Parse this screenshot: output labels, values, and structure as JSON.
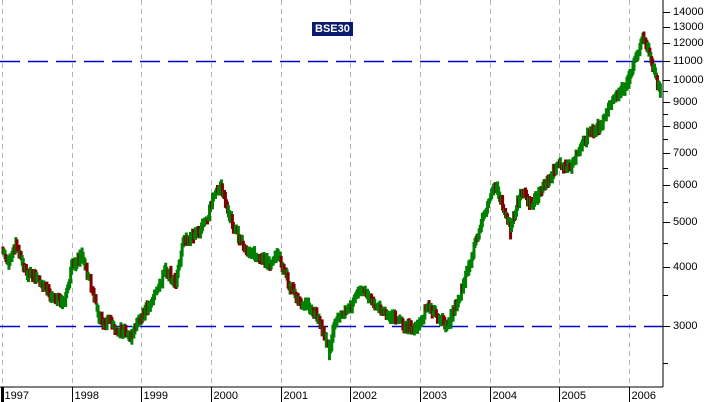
{
  "chart_data": {
    "type": "line",
    "title": "BSE30",
    "xlabel": "",
    "ylabel": "",
    "y_scale": "log",
    "ylim": [
      2400,
      14800
    ],
    "grid": {
      "vertical_year_lines": true,
      "style": "dashed gray"
    },
    "reference_lines": [
      {
        "value": 11000,
        "style": "dashed",
        "color": "#0000cc"
      },
      {
        "value": 3000,
        "style": "dashed",
        "color": "#0000cc"
      }
    ],
    "x_tick_labels": [
      "1997",
      "1998",
      "1999",
      "2000",
      "2001",
      "2002",
      "2003",
      "2004",
      "2005",
      "2006"
    ],
    "y_tick_labels": [
      "14000",
      "13000",
      "12000",
      "11000",
      "10000",
      "9000",
      "8000",
      "7000",
      "6000",
      "5000",
      "4000",
      "3000"
    ],
    "series": [
      {
        "name": "BSE30",
        "up_color": "#008000",
        "down_color": "#800000",
        "x": [
          "1997.0",
          "1997.1",
          "1997.2",
          "1997.35",
          "1997.5",
          "1997.6",
          "1997.75",
          "1997.9",
          "1998.0",
          "1998.15",
          "1998.25",
          "1998.35",
          "1998.45",
          "1998.55",
          "1998.65",
          "1998.75",
          "1998.85",
          "1998.95",
          "1999.1",
          "1999.25",
          "1999.35",
          "1999.5",
          "1999.6",
          "1999.75",
          "1999.85",
          "1999.95",
          "2000.05",
          "2000.15",
          "2000.25",
          "2000.35",
          "2000.45",
          "2000.55",
          "2000.7",
          "2000.85",
          "2000.95",
          "2001.05",
          "2001.15",
          "2001.25",
          "2001.4",
          "2001.55",
          "2001.7",
          "2001.75",
          "2001.85",
          "2002.0",
          "2002.1",
          "2002.2",
          "2002.35",
          "2002.5",
          "2002.65",
          "2002.8",
          "2002.95",
          "2003.1",
          "2003.25",
          "2003.4",
          "2003.55",
          "2003.7",
          "2003.85",
          "2004.0",
          "2004.1",
          "2004.2",
          "2004.3",
          "2004.4",
          "2004.5",
          "2004.6",
          "2004.75",
          "2004.9",
          "2005.0",
          "2005.15",
          "2005.3",
          "2005.45",
          "2005.6",
          "2005.75",
          "2005.9",
          "2006.0",
          "2006.1",
          "2006.2",
          "2006.3",
          "2006.38",
          "2006.45"
        ],
        "values": [
          4350,
          4100,
          4500,
          3900,
          3800,
          3600,
          3450,
          3350,
          4000,
          4250,
          3800,
          3300,
          3000,
          3100,
          2900,
          2950,
          2800,
          3050,
          3300,
          3600,
          3950,
          3700,
          4500,
          4700,
          4800,
          5100,
          5700,
          5900,
          5200,
          4800,
          4500,
          4300,
          4200,
          4050,
          4300,
          3900,
          3600,
          3400,
          3300,
          3100,
          2650,
          2900,
          3150,
          3300,
          3500,
          3600,
          3300,
          3200,
          3100,
          3000,
          2950,
          3300,
          3150,
          3000,
          3400,
          4000,
          4800,
          5600,
          6000,
          5300,
          4800,
          5500,
          5800,
          5400,
          5900,
          6300,
          6700,
          6500,
          7200,
          7800,
          8000,
          9000,
          9500,
          10000,
          11200,
          12500,
          11300,
          10200,
          9500
        ]
      }
    ]
  }
}
